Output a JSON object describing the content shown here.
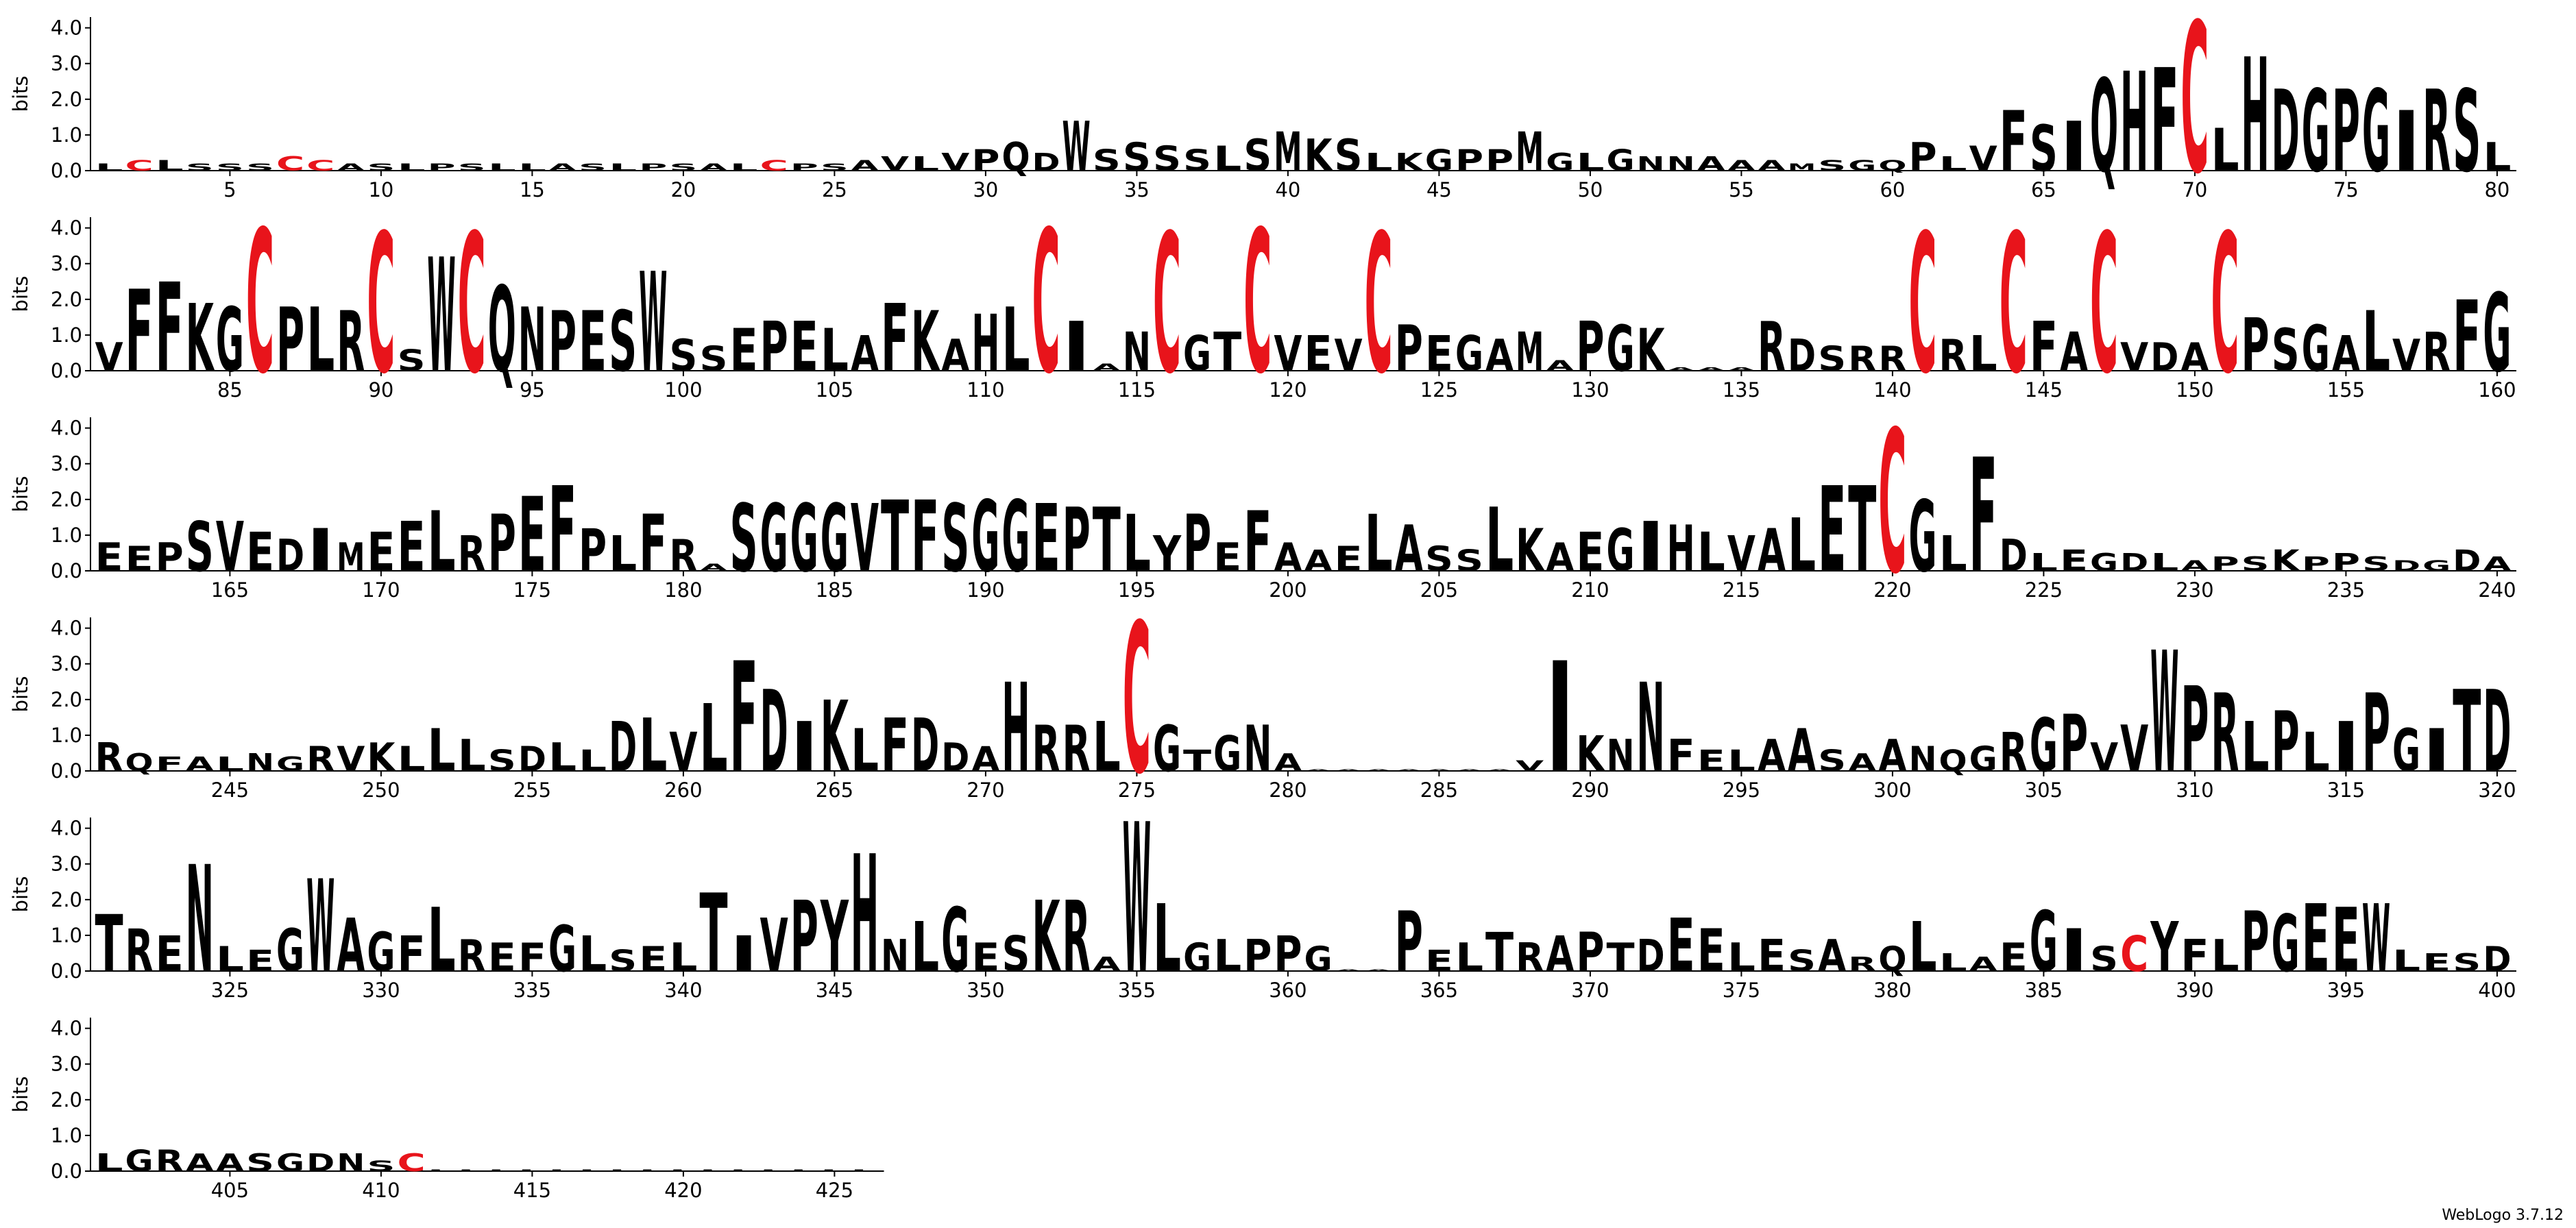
{
  "chart_data": {
    "type": "logo",
    "ylabel": "bits",
    "footer": "WebLogo 3.7.12",
    "color": "#000000",
    "letter_colors": {
      "C": "#e8141b"
    },
    "ylim": [
      0,
      4.3
    ],
    "yticks": [
      {
        "value": 0,
        "label": "0.0"
      },
      {
        "value": 1,
        "label": "1.0"
      },
      {
        "value": 2,
        "label": "2.0"
      },
      {
        "value": 3,
        "label": "3.0"
      },
      {
        "value": 4,
        "label": "4.0"
      }
    ],
    "xticks": [
      5,
      10,
      15,
      20,
      25,
      30,
      35,
      40,
      45,
      50,
      55,
      60,
      65,
      70,
      75,
      80,
      85,
      90,
      95,
      100,
      105,
      110,
      115,
      120,
      125,
      130,
      135,
      140,
      145,
      150,
      155,
      160,
      165,
      170,
      175,
      180,
      185,
      190,
      195,
      200,
      205,
      210,
      215,
      220,
      225,
      230,
      235,
      240,
      245,
      250,
      255,
      260,
      265,
      270,
      275,
      280,
      285,
      290,
      295,
      300,
      305,
      310,
      315,
      320,
      325,
      330,
      335,
      340,
      345,
      350,
      355,
      360,
      365,
      370,
      375,
      380,
      385,
      390,
      395,
      400,
      405,
      410,
      415,
      420,
      425
    ],
    "letters": [
      "L",
      "C",
      "L",
      "S",
      "S",
      "S",
      "C",
      "C",
      "A",
      "S",
      "L",
      "P",
      "S",
      "L",
      "L",
      "A",
      "S",
      "L",
      "P",
      "S",
      "A",
      "L",
      "C",
      "P",
      "S",
      "A",
      "V",
      "L",
      "V",
      "P",
      "Q",
      "D",
      "W",
      "S",
      "S",
      "S",
      "S",
      "L",
      "S",
      "M",
      "K",
      "S",
      "L",
      "K",
      "G",
      "P",
      "P",
      "M",
      "G",
      "L",
      "G",
      "N",
      "N",
      "A",
      "A",
      "A",
      "M",
      "S",
      "G",
      "Q",
      "P",
      "L",
      "V",
      "F",
      "S",
      "I",
      "Q",
      "H",
      "F",
      "C",
      "L",
      "H",
      "D",
      "G",
      "P",
      "G",
      "I",
      "R",
      "S",
      "L",
      "V",
      "F",
      "F",
      "K",
      "G",
      "C",
      "P",
      "L",
      "R",
      "C",
      "S",
      "W",
      "C",
      "Q",
      "N",
      "P",
      "E",
      "S",
      "W",
      "S",
      "S",
      "E",
      "P",
      "E",
      "L",
      "A",
      "F",
      "K",
      "A",
      "H",
      "L",
      "C",
      "I",
      "A",
      "N",
      "C",
      "G",
      "T",
      "C",
      "V",
      "E",
      "V",
      "C",
      "P",
      "E",
      "G",
      "A",
      "M",
      "A",
      "P",
      "G",
      "K",
      "A",
      "A",
      "A",
      "R",
      "D",
      "S",
      "R",
      "R",
      "C",
      "R",
      "L",
      "C",
      "F",
      "A",
      "C",
      "V",
      "D",
      "A",
      "C",
      "P",
      "S",
      "G",
      "A",
      "L",
      "V",
      "R",
      "F",
      "G",
      "E",
      "E",
      "P",
      "S",
      "V",
      "E",
      "D",
      "I",
      "M",
      "E",
      "E",
      "L",
      "R",
      "P",
      "E",
      "F",
      "P",
      "L",
      "F",
      "R",
      "A",
      "S",
      "G",
      "G",
      "G",
      "V",
      "T",
      "F",
      "S",
      "G",
      "G",
      "E",
      "P",
      "T",
      "L",
      "Y",
      "P",
      "E",
      "F",
      "A",
      "A",
      "E",
      "L",
      "A",
      "S",
      "S",
      "L",
      "K",
      "A",
      "E",
      "G",
      "I",
      "H",
      "L",
      "V",
      "A",
      "L",
      "E",
      "T",
      "C",
      "G",
      "L",
      "F",
      "D",
      "L",
      "E",
      "G",
      "D",
      "L",
      "A",
      "P",
      "S",
      "K",
      "P",
      "P",
      "S",
      "D",
      "G",
      "D",
      "A",
      "R",
      "Q",
      "F",
      "A",
      "L",
      "N",
      "G",
      "R",
      "V",
      "K",
      "L",
      "L",
      "L",
      "S",
      "D",
      "L",
      "L",
      "D",
      "L",
      "V",
      "L",
      "F",
      "D",
      "I",
      "K",
      "L",
      "F",
      "D",
      "D",
      "A",
      "H",
      "R",
      "R",
      "L",
      "C",
      "G",
      "T",
      "G",
      "N",
      "A",
      "A",
      "A",
      "A",
      "A",
      "A",
      "A",
      "A",
      "V",
      "I",
      "K",
      "N",
      "N",
      "F",
      "E",
      "L",
      "A",
      "A",
      "S",
      "A",
      "A",
      "N",
      "Q",
      "G",
      "R",
      "G",
      "P",
      "V",
      "V",
      "W",
      "P",
      "R",
      "L",
      "P",
      "L",
      "I",
      "P",
      "G",
      "I",
      "T",
      "D",
      "T",
      "R",
      "E",
      "N",
      "L",
      "E",
      "G",
      "W",
      "A",
      "G",
      "F",
      "L",
      "R",
      "E",
      "F",
      "G",
      "L",
      "S",
      "E",
      "L",
      "T",
      "I",
      "V",
      "P",
      "Y",
      "H",
      "N",
      "L",
      "G",
      "E",
      "S",
      "K",
      "R",
      "A",
      "W",
      "L",
      "G",
      "L",
      "P",
      "P",
      "G",
      "A",
      "A",
      "P",
      "E",
      "L",
      "T",
      "R",
      "A",
      "P",
      "T",
      "D",
      "E",
      "E",
      "L",
      "E",
      "S",
      "A",
      "R",
      "Q",
      "L",
      "L",
      "A",
      "E",
      "G",
      "I",
      "S",
      "C",
      "Y",
      "F",
      "L",
      "P",
      "G",
      "E",
      "E",
      "W",
      "L",
      "E",
      "S",
      "D",
      "L",
      "G",
      "R",
      "A",
      "A",
      "S",
      "G",
      "D",
      "N",
      "S",
      "C",
      "L",
      "L",
      "L",
      "L",
      "L",
      "L",
      "L",
      "L",
      "L",
      "L",
      "L",
      "L",
      "L",
      "L",
      "L"
    ],
    "values": [
      0.2,
      0.3,
      0.3,
      0.2,
      0.2,
      0.2,
      0.4,
      0.3,
      0.2,
      0.2,
      0.2,
      0.2,
      0.2,
      0.2,
      0.2,
      0.2,
      0.2,
      0.2,
      0.2,
      0.2,
      0.2,
      0.2,
      0.3,
      0.2,
      0.2,
      0.3,
      0.4,
      0.4,
      0.5,
      0.6,
      0.8,
      0.5,
      1.4,
      0.6,
      0.8,
      0.7,
      0.6,
      0.7,
      0.9,
      1.1,
      0.9,
      0.9,
      0.5,
      0.5,
      0.6,
      0.6,
      0.6,
      1.1,
      0.5,
      0.5,
      0.6,
      0.4,
      0.4,
      0.4,
      0.3,
      0.3,
      0.2,
      0.3,
      0.3,
      0.3,
      0.8,
      0.4,
      0.7,
      1.7,
      1.3,
      1.4,
      2.6,
      2.8,
      2.9,
      4.2,
      1.2,
      3.2,
      2.3,
      2.3,
      2.3,
      2.3,
      1.7,
      2.3,
      2.3,
      0.8,
      0.8,
      2.3,
      2.5,
      1.9,
      1.8,
      4.0,
      1.8,
      1.8,
      1.7,
      3.9,
      0.6,
      3.2,
      3.9,
      2.4,
      1.8,
      1.7,
      1.7,
      1.7,
      2.8,
      0.9,
      0.7,
      1.2,
      1.4,
      1.4,
      1.2,
      1.0,
      1.9,
      1.7,
      0.9,
      1.6,
      1.8,
      4.0,
      1.4,
      0.2,
      1.1,
      3.9,
      1.0,
      1.1,
      4.0,
      1.0,
      1.0,
      0.9,
      3.9,
      1.3,
      1.0,
      1.0,
      0.9,
      1.1,
      0.3,
      1.4,
      1.3,
      1.2,
      0.1,
      0.1,
      0.1,
      1.4,
      0.9,
      0.7,
      0.7,
      0.7,
      3.9,
      0.9,
      1.0,
      3.9,
      1.4,
      1.1,
      3.9,
      0.8,
      0.8,
      0.8,
      3.9,
      1.5,
      1.2,
      1.3,
      1.0,
      1.7,
      0.9,
      1.1,
      2.0,
      2.2,
      0.8,
      0.7,
      0.8,
      1.4,
      1.4,
      1.1,
      0.9,
      1.2,
      0.8,
      1.1,
      1.4,
      1.7,
      1.0,
      1.6,
      2.1,
      2.4,
      1.2,
      1.0,
      1.6,
      0.9,
      0.2,
      1.9,
      1.9,
      1.9,
      1.9,
      1.9,
      2.0,
      2.0,
      1.9,
      2.0,
      2.0,
      1.9,
      1.8,
      1.8,
      1.6,
      1.0,
      1.6,
      0.8,
      1.7,
      0.8,
      0.6,
      0.7,
      1.6,
      1.3,
      0.7,
      0.6,
      1.8,
      1.2,
      0.8,
      1.1,
      1.2,
      1.4,
      1.3,
      1.1,
      1.0,
      1.2,
      1.5,
      2.4,
      2.4,
      4.0,
      2.0,
      1.0,
      3.2,
      0.9,
      0.5,
      0.6,
      0.5,
      0.5,
      0.5,
      0.3,
      0.4,
      0.4,
      0.6,
      0.4,
      0.5,
      0.4,
      0.3,
      0.3,
      0.6,
      0.4,
      0.8,
      0.5,
      0.4,
      0.4,
      0.4,
      0.5,
      0.4,
      0.7,
      0.7,
      0.8,
      0.7,
      1.2,
      0.9,
      0.6,
      0.7,
      0.8,
      0.6,
      1.4,
      1.5,
      1.1,
      1.9,
      3.1,
      2.3,
      1.4,
      2.0,
      1.2,
      1.5,
      1.5,
      0.8,
      0.7,
      2.5,
      1.3,
      1.3,
      1.4,
      4.2,
      1.3,
      0.6,
      1.0,
      1.3,
      0.5,
      0.05,
      0.05,
      0.05,
      0.05,
      0.05,
      0.05,
      0.05,
      0.3,
      3.1,
      1.0,
      0.9,
      2.5,
      0.9,
      0.6,
      0.6,
      0.9,
      1.2,
      0.6,
      0.5,
      0.9,
      0.7,
      0.6,
      0.7,
      1.1,
      1.5,
      1.6,
      0.8,
      1.3,
      3.4,
      2.4,
      2.2,
      1.4,
      1.7,
      1.1,
      1.4,
      2.2,
      1.2,
      1.2,
      2.3,
      2.3,
      1.6,
      1.2,
      1.0,
      3.0,
      0.7,
      0.6,
      1.2,
      2.6,
      1.5,
      1.1,
      1.0,
      1.8,
      0.9,
      0.8,
      0.8,
      1.3,
      1.0,
      0.6,
      0.7,
      0.8,
      2.2,
      1.0,
      1.5,
      2.0,
      2.0,
      3.3,
      0.9,
      1.4,
      1.8,
      0.8,
      1.0,
      2.0,
      2.0,
      0.4,
      4.2,
      1.9,
      0.8,
      0.9,
      0.9,
      1.0,
      0.7,
      0.05,
      0.05,
      1.7,
      0.6,
      0.8,
      1.1,
      0.8,
      1.0,
      1.1,
      0.8,
      0.9,
      1.5,
      1.2,
      0.8,
      0.9,
      0.6,
      0.9,
      0.4,
      0.7,
      1.4,
      0.5,
      0.4,
      0.8,
      1.7,
      1.2,
      0.7,
      1.0,
      1.4,
      0.9,
      0.9,
      1.7,
      1.6,
      1.9,
      1.8,
      1.9,
      0.6,
      0.5,
      0.5,
      0.7,
      0.5,
      0.6,
      0.6,
      0.5,
      0.5,
      0.5,
      0.5,
      0.5,
      0.5,
      0.3,
      0.5,
      0.05,
      0.05,
      0.05,
      0.05,
      0.05,
      0.05,
      0.05,
      0.05,
      0.05,
      0.05,
      0.05,
      0.05,
      0.05,
      0.05,
      0.05
    ]
  }
}
